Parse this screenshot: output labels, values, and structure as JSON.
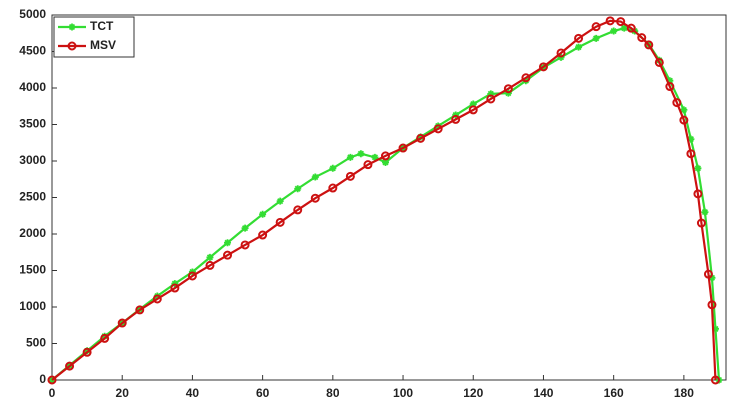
{
  "chart_data": {
    "type": "line",
    "xlim": [
      0,
      192
    ],
    "ylim": [
      0,
      5000
    ],
    "xticks": [
      0,
      20,
      40,
      60,
      80,
      100,
      120,
      140,
      160,
      180
    ],
    "yticks": [
      0,
      500,
      1000,
      1500,
      2000,
      2500,
      3000,
      3500,
      4000,
      4500,
      5000
    ],
    "legend": "upper left",
    "series": [
      {
        "name": "TCT",
        "color": "#33dd33",
        "marker": "star",
        "x": [
          0,
          5,
          10,
          15,
          20,
          25,
          30,
          35,
          40,
          45,
          50,
          55,
          60,
          65,
          70,
          75,
          80,
          85,
          88,
          92,
          95,
          100,
          105,
          110,
          115,
          120,
          125,
          130,
          135,
          140,
          145,
          150,
          155,
          160,
          163,
          166,
          170,
          173,
          176,
          180,
          182,
          184,
          186,
          188,
          189,
          190
        ],
        "y": [
          0,
          200,
          400,
          600,
          780,
          970,
          1150,
          1320,
          1480,
          1680,
          1880,
          2080,
          2270,
          2450,
          2620,
          2780,
          2900,
          3050,
          3100,
          3050,
          2980,
          3180,
          3330,
          3480,
          3630,
          3780,
          3920,
          3930,
          4100,
          4280,
          4420,
          4560,
          4680,
          4780,
          4820,
          4780,
          4600,
          4380,
          4100,
          3700,
          3300,
          2900,
          2300,
          1400,
          700,
          0
        ]
      },
      {
        "name": "MSV",
        "color": "#cc1111",
        "marker": "circle",
        "x": [
          0,
          5,
          10,
          15,
          20,
          25,
          30,
          35,
          40,
          45,
          50,
          55,
          60,
          65,
          70,
          75,
          80,
          85,
          90,
          95,
          100,
          105,
          110,
          115,
          120,
          125,
          130,
          135,
          140,
          145,
          150,
          155,
          159,
          162,
          165,
          168,
          170,
          173,
          176,
          178,
          180,
          182,
          184,
          185,
          187,
          188,
          189
        ],
        "y": [
          0,
          190,
          380,
          570,
          780,
          960,
          1110,
          1260,
          1425,
          1570,
          1710,
          1850,
          1986,
          2160,
          2330,
          2490,
          2630,
          2790,
          2950,
          3070,
          3178,
          3310,
          3440,
          3570,
          3700,
          3850,
          3990,
          4140,
          4290,
          4480,
          4680,
          4840,
          4920,
          4910,
          4820,
          4690,
          4590,
          4350,
          4020,
          3800,
          3560,
          3100,
          2550,
          2150,
          1450,
          1030,
          0
        ]
      }
    ]
  }
}
